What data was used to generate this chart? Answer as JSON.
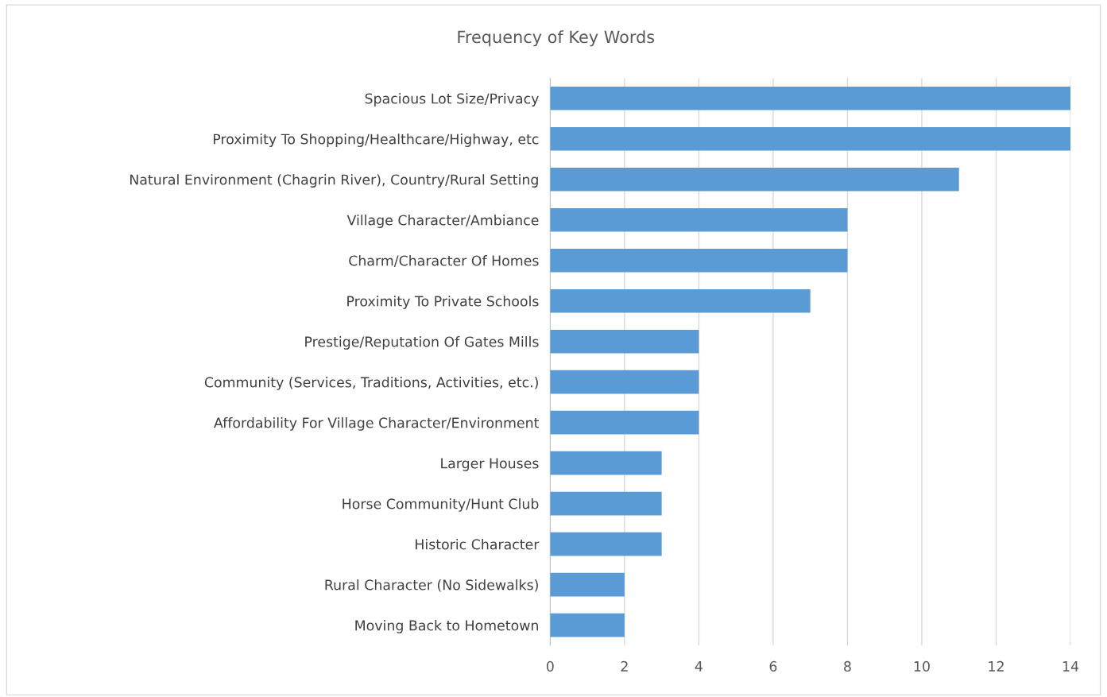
{
  "chart_data": {
    "type": "bar",
    "orientation": "horizontal",
    "title": "Frequency of Key Words",
    "categories": [
      "Spacious Lot Size/Privacy",
      "Proximity To Shopping/Healthcare/Highway, etc",
      "Natural Environment (Chagrin River), Country/Rural Setting",
      "Village Character/Ambiance",
      "Charm/Character Of Homes",
      "Proximity To Private Schools",
      "Prestige/Reputation Of Gates Mills",
      "Community (Services, Traditions, Activities, etc.)",
      "Affordability For Village Character/Environment",
      "Larger Houses",
      "Horse Community/Hunt Club",
      "Historic Character",
      "Rural Character (No Sidewalks)",
      "Moving Back to Hometown"
    ],
    "values": [
      14,
      14,
      11,
      8,
      8,
      7,
      4,
      4,
      4,
      3,
      3,
      3,
      2,
      2
    ],
    "color": "#5b9bd5",
    "xlim": [
      0,
      14
    ],
    "xticks": [
      0,
      2,
      4,
      6,
      8,
      10,
      12,
      14
    ],
    "grid": "x"
  }
}
